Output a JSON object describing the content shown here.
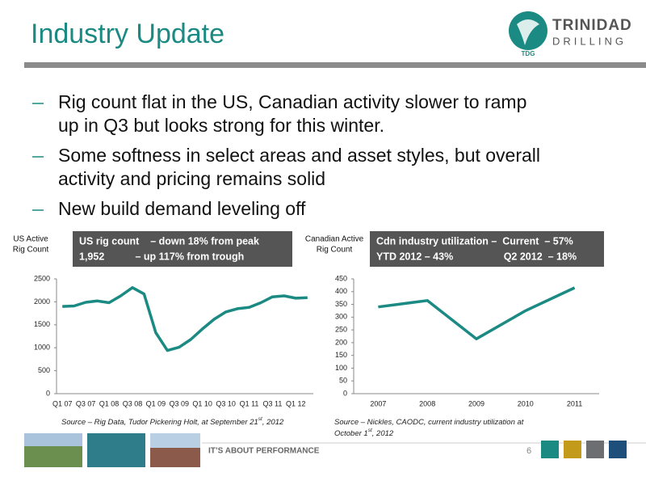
{
  "header": {
    "title": "Industry Update",
    "logo": {
      "name": "TRINIDAD",
      "sub": "DRILLING",
      "badge": "TDG"
    }
  },
  "bullets": [
    [
      "Rig count flat in the US, Canadian activity slower to ramp",
      "up in Q3 but looks strong for this winter."
    ],
    [
      "Some softness in select areas and asset styles, but overall",
      "activity and pricing remains solid"
    ],
    [
      "New build demand leveling off"
    ]
  ],
  "chart_data": [
    {
      "type": "line",
      "y_label": [
        "US Active",
        "Rig Count"
      ],
      "info": [
        "US rig count    – down 18% from peak",
        "1,952           – up 117% from trough"
      ],
      "categories": [
        "Q1 07",
        null,
        "Q3 07",
        null,
        "Q1 08",
        null,
        "Q3 08",
        null,
        "Q1 09",
        null,
        "Q3 09",
        null,
        "Q1 10",
        null,
        "Q3 10",
        null,
        "Q1 11",
        null,
        "Q3 11",
        null,
        "Q1 12",
        null
      ],
      "values": [
        1900,
        1910,
        1990,
        2020,
        1980,
        2130,
        2310,
        2170,
        1330,
        940,
        1010,
        1180,
        1410,
        1620,
        1780,
        1850,
        1880,
        1980,
        2110,
        2130,
        2080,
        2090
      ],
      "color": "#1a8a83",
      "ylim": [
        0,
        2500
      ],
      "yticks": [
        0,
        500,
        1000,
        1500,
        2000,
        2500
      ],
      "source": [
        "Source – Rig Data, Tudor Pickering Holt, at September 21",
        "st",
        ", 2012"
      ]
    },
    {
      "type": "line",
      "y_label": [
        "Canadian Active",
        "Rig Count"
      ],
      "info": [
        "Cdn industry utilization –  Current  – 57%",
        "YTD 2012 – 43%                  Q2 2012  – 18%"
      ],
      "categories": [
        "2007",
        "2008",
        "2009",
        "2010",
        "2011"
      ],
      "values": [
        340,
        365,
        215,
        325,
        415
      ],
      "color": "#1a8a83",
      "ylim": [
        0,
        450
      ],
      "yticks": [
        0,
        50,
        100,
        150,
        200,
        250,
        300,
        350,
        400,
        450
      ],
      "source": [
        "Source – Nickles, CAODC, current industry utilization at",
        "October 1",
        "st",
        ", 2012"
      ]
    }
  ],
  "footer": {
    "tagline": "IT’S ABOUT PERFORMANCE",
    "page": "6"
  }
}
